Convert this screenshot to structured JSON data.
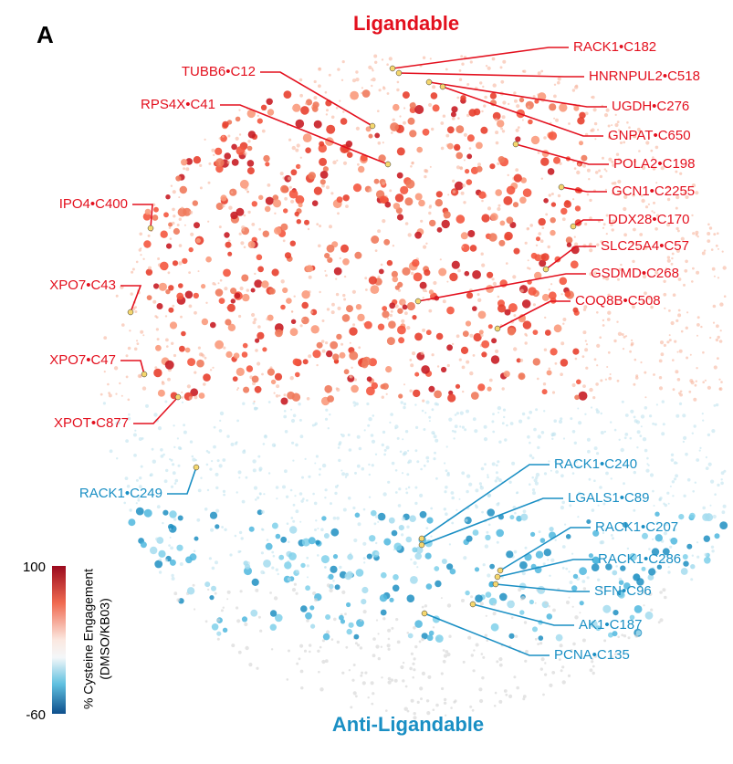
{
  "panel_label": "A",
  "top_label": "Ligandable",
  "bottom_label": "Anti-Ligandable",
  "colorbar": {
    "title": "% Cysteine Engagement",
    "subtitle": "(DMSO/KB03)",
    "max": 100,
    "min": -60
  },
  "labels_ligandable": [
    "RACK1•C182",
    "HNRNPUL2•C518",
    "UGDH•C276",
    "GNPAT•C650",
    "POLA2•C198",
    "GCN1•C2255",
    "DDX28•C170",
    "SLC25A4•C57",
    "GSDMD•C268",
    "COQ8B•C508",
    "TUBB6•C12",
    "RPS4X•C41",
    "IPO4•C400",
    "XPO7•C43",
    "XPO7•C47",
    "XPOT•C877"
  ],
  "labels_anti": [
    "RACK1•C249",
    "RACK1•C240",
    "LGALS1•C89",
    "RACK1•C207",
    "RACK1•C286",
    "SFN•C96",
    "AK1•C187",
    "PCNA•C135"
  ]
}
